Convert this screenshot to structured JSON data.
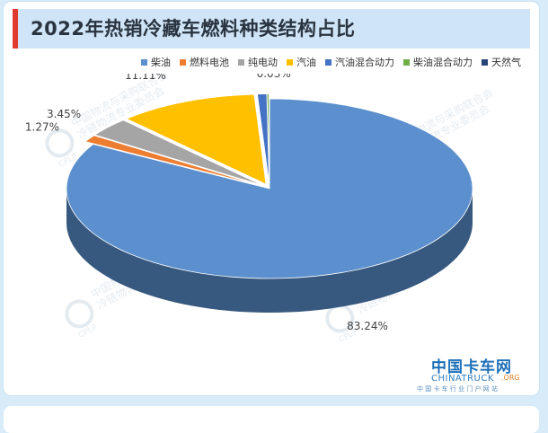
{
  "header": {
    "title": "2022年热销冷藏车燃料种类结构占比"
  },
  "chart_data": {
    "type": "pie",
    "title": "2022年热销冷藏车燃料种类结构占比",
    "legend_position": "top-right",
    "style": "3d-exploded",
    "series": [
      {
        "name": "柴油",
        "value": 83.24,
        "label": "83.24%",
        "color": "#5b8fcd"
      },
      {
        "name": "燃料电池",
        "value": 1.27,
        "label": "1.27%",
        "color": "#ed7d31"
      },
      {
        "name": "纯电动",
        "value": 3.45,
        "label": "3.45%",
        "color": "#a5a5a5"
      },
      {
        "name": "汽油",
        "value": 11.11,
        "label": "11.11%",
        "color": "#ffc000"
      },
      {
        "name": "汽油混合动力",
        "value": 0.74,
        "label": "0.74%",
        "color": "#4472c4"
      },
      {
        "name": "柴油混合动力",
        "value": 0.16,
        "label": "0.16%",
        "color": "#70ad47"
      },
      {
        "name": "天然气",
        "value": 0.03,
        "label": "0.03%",
        "color": "#264478"
      }
    ]
  },
  "watermarks": {
    "line1": "中国物流与采购联合会",
    "line2": "冷链物流专业委员会",
    "logo": "CPLP"
  },
  "brand": {
    "cn": "中国卡车网",
    "en": "CHINATRUCK",
    "domain": ".ORG",
    "sub": "中 国 卡 车 行 业 门 户 网 站"
  }
}
